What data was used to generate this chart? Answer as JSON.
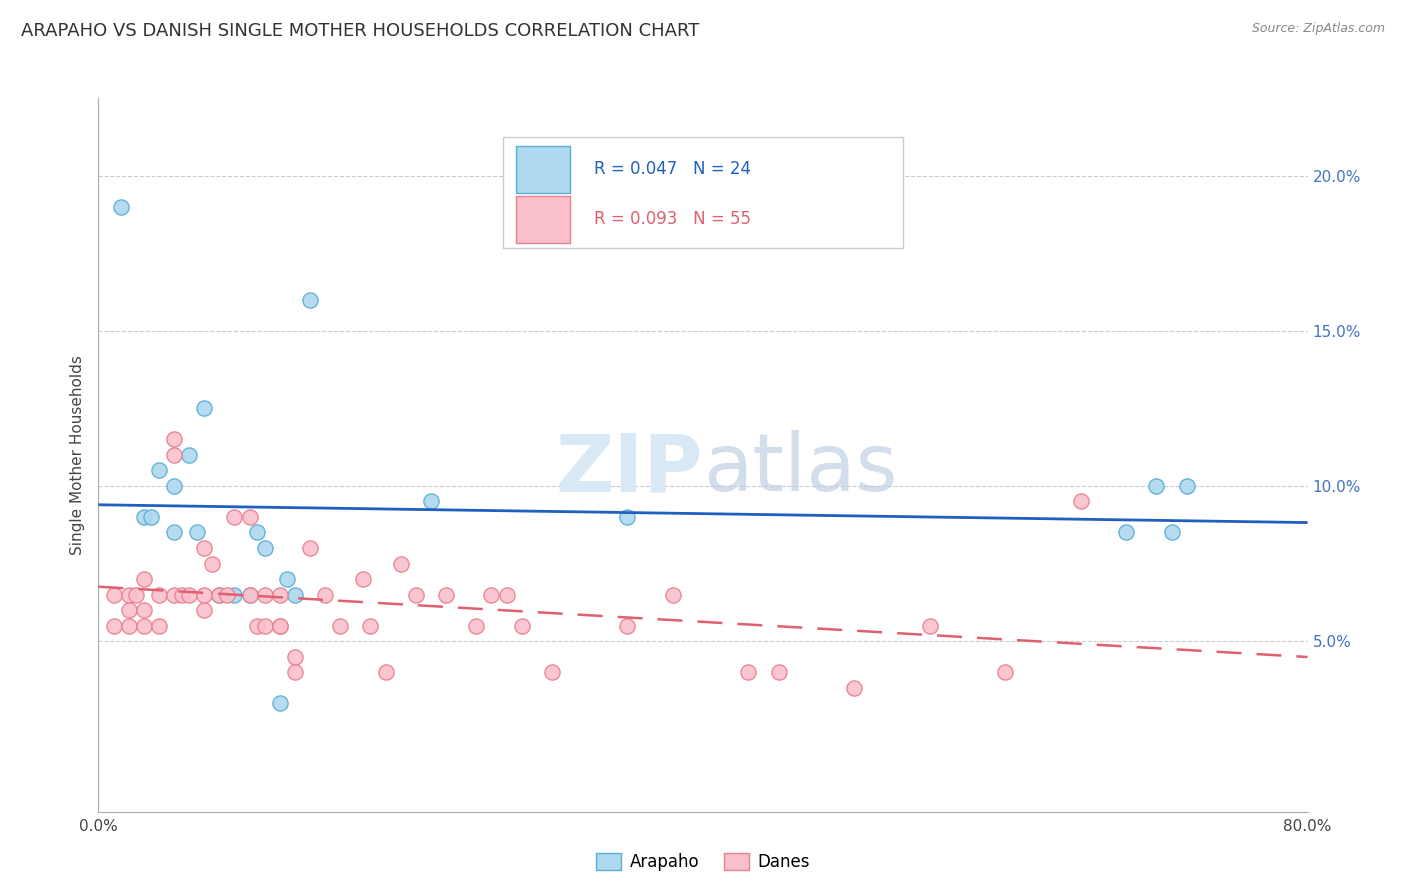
{
  "title": "ARAPAHO VS DANISH SINGLE MOTHER HOUSEHOLDS CORRELATION CHART",
  "source": "Source: ZipAtlas.com",
  "ylabel": "Single Mother Households",
  "y_ticks_right": [
    0.05,
    0.1,
    0.15,
    0.2
  ],
  "y_tick_labels_right": [
    "5.0%",
    "10.0%",
    "15.0%",
    "20.0%"
  ],
  "xlim": [
    0.0,
    0.8
  ],
  "ylim": [
    -0.005,
    0.225
  ],
  "arapaho_color": "#ADD8F0",
  "arapaho_edge_color": "#5BAED6",
  "danes_color": "#F9C0CC",
  "danes_edge_color": "#E8808F",
  "trend_blue": "#2060C0",
  "trend_pink": "#E06070",
  "legend_r_arapaho": "R = 0.047",
  "legend_n_arapaho": "N = 24",
  "legend_r_danes": "R = 0.093",
  "legend_n_danes": "N = 55",
  "legend_label_arapaho": "Arapaho",
  "legend_label_danes": "Danes",
  "arapaho_x": [
    0.015,
    0.03,
    0.035,
    0.04,
    0.05,
    0.05,
    0.06,
    0.065,
    0.07,
    0.08,
    0.09,
    0.1,
    0.105,
    0.11,
    0.12,
    0.125,
    0.13,
    0.14,
    0.22,
    0.35,
    0.68,
    0.7,
    0.71,
    0.72
  ],
  "arapaho_y": [
    0.19,
    0.09,
    0.09,
    0.105,
    0.1,
    0.085,
    0.11,
    0.085,
    0.125,
    0.065,
    0.065,
    0.065,
    0.085,
    0.08,
    0.03,
    0.07,
    0.065,
    0.16,
    0.095,
    0.09,
    0.085,
    0.1,
    0.085,
    0.1
  ],
  "danes_x": [
    0.01,
    0.01,
    0.02,
    0.02,
    0.02,
    0.025,
    0.03,
    0.03,
    0.03,
    0.04,
    0.04,
    0.05,
    0.05,
    0.05,
    0.055,
    0.06,
    0.07,
    0.07,
    0.07,
    0.075,
    0.08,
    0.085,
    0.09,
    0.1,
    0.1,
    0.105,
    0.11,
    0.11,
    0.12,
    0.12,
    0.12,
    0.13,
    0.13,
    0.14,
    0.15,
    0.16,
    0.175,
    0.18,
    0.19,
    0.2,
    0.21,
    0.23,
    0.25,
    0.26,
    0.27,
    0.28,
    0.3,
    0.35,
    0.38,
    0.43,
    0.45,
    0.5,
    0.55,
    0.6,
    0.65
  ],
  "danes_y": [
    0.065,
    0.055,
    0.065,
    0.06,
    0.055,
    0.065,
    0.07,
    0.06,
    0.055,
    0.065,
    0.055,
    0.115,
    0.11,
    0.065,
    0.065,
    0.065,
    0.08,
    0.065,
    0.06,
    0.075,
    0.065,
    0.065,
    0.09,
    0.09,
    0.065,
    0.055,
    0.065,
    0.055,
    0.065,
    0.055,
    0.055,
    0.045,
    0.04,
    0.08,
    0.065,
    0.055,
    0.07,
    0.055,
    0.04,
    0.075,
    0.065,
    0.065,
    0.055,
    0.065,
    0.065,
    0.055,
    0.04,
    0.055,
    0.065,
    0.04,
    0.04,
    0.035,
    0.055,
    0.04,
    0.095
  ],
  "grid_color": "#CCCCCC",
  "background_color": "#FFFFFF",
  "title_fontsize": 13,
  "axis_label_fontsize": 11,
  "tick_fontsize": 11,
  "legend_fontsize": 12,
  "marker_size": 120
}
